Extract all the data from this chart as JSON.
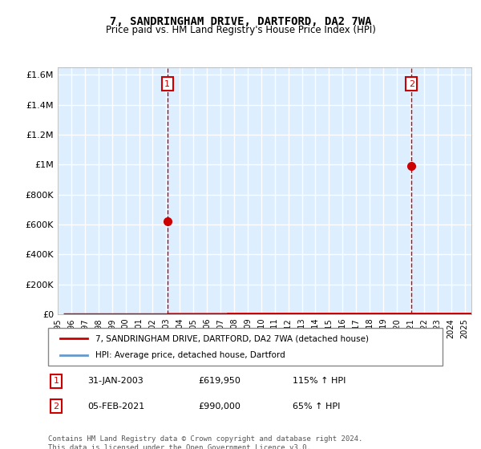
{
  "title": "7, SANDRINGHAM DRIVE, DARTFORD, DA2 7WA",
  "subtitle": "Price paid vs. HM Land Registry's House Price Index (HPI)",
  "legend_line1": "7, SANDRINGHAM DRIVE, DARTFORD, DA2 7WA (detached house)",
  "legend_line2": "HPI: Average price, detached house, Dartford",
  "annotation1_label": "1",
  "annotation1_date": "31-JAN-2003",
  "annotation1_price": "£619,950",
  "annotation1_hpi": "115% ↑ HPI",
  "annotation2_label": "2",
  "annotation2_date": "05-FEB-2021",
  "annotation2_price": "£990,000",
  "annotation2_hpi": "65% ↑ HPI",
  "footer": "Contains HM Land Registry data © Crown copyright and database right 2024.\nThis data is licensed under the Open Government Licence v3.0.",
  "red_color": "#cc0000",
  "blue_color": "#6699cc",
  "bg_color": "#ddeeff",
  "grid_color": "#ffffff",
  "annotation_box_color": "#cc0000",
  "vline_color": "#cc0000",
  "ylim": [
    0,
    1650000
  ],
  "sale1_x": 2003.08,
  "sale1_y": 619950,
  "sale2_x": 2021.09,
  "sale2_y": 990000,
  "xmin": 1995.5,
  "xmax": 2025.5
}
